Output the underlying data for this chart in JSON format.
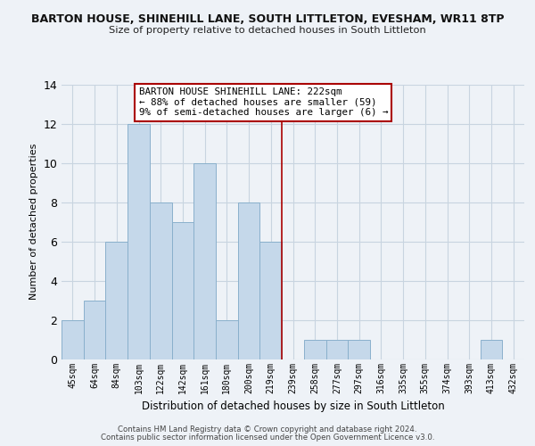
{
  "title": "BARTON HOUSE, SHINEHILL LANE, SOUTH LITTLETON, EVESHAM, WR11 8TP",
  "subtitle": "Size of property relative to detached houses in South Littleton",
  "xlabel": "Distribution of detached houses by size in South Littleton",
  "ylabel": "Number of detached properties",
  "bar_labels": [
    "45sqm",
    "64sqm",
    "84sqm",
    "103sqm",
    "122sqm",
    "142sqm",
    "161sqm",
    "180sqm",
    "200sqm",
    "219sqm",
    "239sqm",
    "258sqm",
    "277sqm",
    "297sqm",
    "316sqm",
    "335sqm",
    "355sqm",
    "374sqm",
    "393sqm",
    "413sqm",
    "432sqm"
  ],
  "bar_values": [
    2,
    3,
    6,
    12,
    8,
    7,
    10,
    2,
    8,
    6,
    0,
    1,
    1,
    1,
    0,
    0,
    0,
    0,
    0,
    1,
    0
  ],
  "bar_color": "#c5d8ea",
  "bar_edge_color": "#8ab0cc",
  "ylim": [
    0,
    14
  ],
  "yticks": [
    0,
    2,
    4,
    6,
    8,
    10,
    12,
    14
  ],
  "vline_x_index": 9.5,
  "annotation_title": "BARTON HOUSE SHINEHILL LANE: 222sqm",
  "annotation_line1": "← 88% of detached houses are smaller (59)",
  "annotation_line2": "9% of semi-detached houses are larger (6) →",
  "footer1": "Contains HM Land Registry data © Crown copyright and database right 2024.",
  "footer2": "Contains public sector information licensed under the Open Government Licence v3.0.",
  "bg_color": "#eef2f7",
  "plot_bg_color": "#eef2f7",
  "vline_color": "#aa0000",
  "annotation_box_color": "#ffffff",
  "annotation_box_edge": "#aa0000",
  "grid_color": "#c8d4e0"
}
